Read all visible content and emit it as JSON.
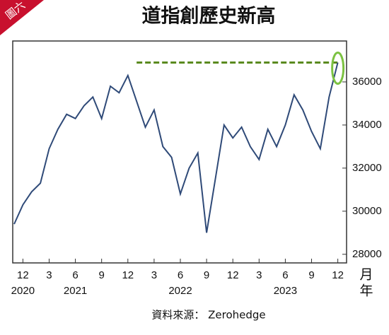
{
  "chart_data": {
    "type": "line",
    "badge": "圖六",
    "title": "道指創歷史新高",
    "source": "資料來源： Zerohedge",
    "x_unit_month": "月",
    "x_unit_year": "年",
    "x": [
      "2020-11",
      "2020-12",
      "2021-01",
      "2021-02",
      "2021-03",
      "2021-04",
      "2021-05",
      "2021-06",
      "2021-07",
      "2021-08",
      "2021-09",
      "2021-10",
      "2021-11",
      "2021-12",
      "2022-01",
      "2022-02",
      "2022-03",
      "2022-04",
      "2022-05",
      "2022-06",
      "2022-07",
      "2022-08",
      "2022-09",
      "2022-10",
      "2022-11",
      "2022-12",
      "2023-01",
      "2023-02",
      "2023-03",
      "2023-04",
      "2023-05",
      "2023-06",
      "2023-07",
      "2023-08",
      "2023-09",
      "2023-10",
      "2023-11",
      "2023-12"
    ],
    "series": [
      {
        "color": "#2f4a78",
        "values": [
          29400,
          30300,
          30900,
          31300,
          32900,
          33800,
          34500,
          34300,
          34900,
          35300,
          34300,
          35800,
          35500,
          36300,
          35100,
          33900,
          34700,
          33000,
          32500,
          30800,
          32000,
          32700,
          29000,
          31500,
          34000,
          33400,
          33900,
          33000,
          32400,
          33800,
          33000,
          34000,
          35400,
          34700,
          33700,
          32900,
          35300,
          36900
        ]
      }
    ],
    "reference_line": {
      "value": 36900,
      "from": "2022-01",
      "to": "2023-12",
      "color": "#5a8a1e"
    },
    "xlim": [
      "2020-11",
      "2024-01"
    ],
    "xticks": [
      {
        "value": "2020-12",
        "label": "12"
      },
      {
        "value": "2021-03",
        "label": "3"
      },
      {
        "value": "2021-06",
        "label": "6"
      },
      {
        "value": "2021-09",
        "label": "9"
      },
      {
        "value": "2021-12",
        "label": "12"
      },
      {
        "value": "2022-03",
        "label": "3"
      },
      {
        "value": "2022-06",
        "label": "6"
      },
      {
        "value": "2022-09",
        "label": "9"
      },
      {
        "value": "2022-12",
        "label": "12"
      },
      {
        "value": "2023-03",
        "label": "3"
      },
      {
        "value": "2023-06",
        "label": "6"
      },
      {
        "value": "2023-09",
        "label": "9"
      },
      {
        "value": "2023-12",
        "label": "12"
      }
    ],
    "year_ticks": [
      {
        "value": "2020-12",
        "label": "2020"
      },
      {
        "value": "2021-06",
        "label": "2021"
      },
      {
        "value": "2022-06",
        "label": "2022"
      },
      {
        "value": "2023-06",
        "label": "2023"
      }
    ],
    "ylim": [
      27600,
      37900
    ],
    "yticks": [
      28000,
      30000,
      32000,
      34000,
      36000
    ]
  }
}
